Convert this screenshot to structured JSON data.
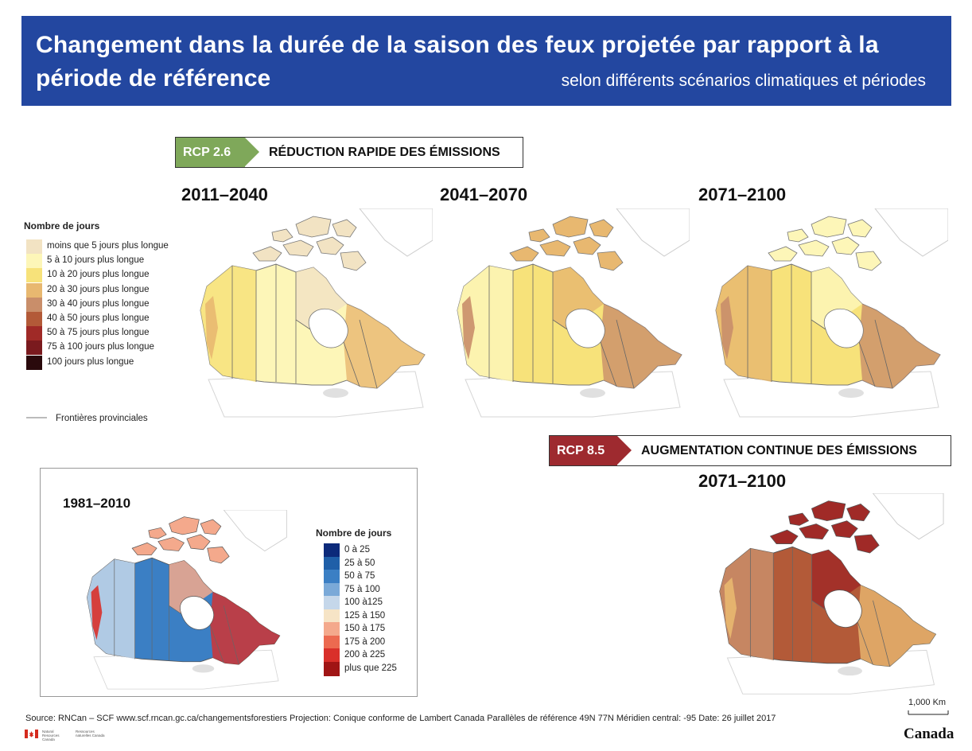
{
  "title": {
    "line1": "Changement dans la durée de la saison des feux projetée par rapport  à la",
    "line2": "période de référence",
    "subtitle": "selon différents scénarios climatiques et périodes"
  },
  "scenarios": {
    "rcp26": {
      "tag": "RCP 2.6",
      "label": "RÉDUCTION RAPIDE DES ÉMISSIONS",
      "color": "#7fa85a"
    },
    "rcp85": {
      "tag": "RCP 8.5",
      "label": "AUGMENTATION CONTINUE DES ÉMISSIONS",
      "color": "#9e2a2f"
    }
  },
  "periods": {
    "p1": "2011–2040",
    "p2": "2041–2070",
    "p3": "2071–2100",
    "p4": "2071–2100",
    "baseline": "1981–2010"
  },
  "legend_change": {
    "title": "Nombre de jours",
    "items": [
      {
        "label": "moins que 5 jours plus longue",
        "color": "#f2e3c3"
      },
      {
        "label": "5 à 10 jours plus longue",
        "color": "#fdf6b8"
      },
      {
        "label": "10 à 20 jours plus longue",
        "color": "#f7e27a"
      },
      {
        "label": "20 à 30 jours plus longue",
        "color": "#e8b870"
      },
      {
        "label": "30 à 40 jours plus longue",
        "color": "#c98e6a"
      },
      {
        "label": "40 à 50 jours plus longue",
        "color": "#b35a38"
      },
      {
        "label": "50 à 75 jours plus longue",
        "color": "#a02a27"
      },
      {
        "label": "75 à 100 jours plus longue",
        "color": "#7a1a1e"
      },
      {
        "label": "100 jours plus longue",
        "color": "#2a0a0c"
      }
    ],
    "border_label": "Frontières provinciales"
  },
  "legend_baseline": {
    "title": "Nombre de jours",
    "items": [
      {
        "label": "0 à 25",
        "color": "#0c2a7a"
      },
      {
        "label": "25 à 50",
        "color": "#1f5fa8"
      },
      {
        "label": "50 à 75",
        "color": "#3b7fc4"
      },
      {
        "label": "75 à 100",
        "color": "#7aa9d8"
      },
      {
        "label": "100 à125",
        "color": "#c5d7ea"
      },
      {
        "label": "125 à 150",
        "color": "#f6e4c6"
      },
      {
        "label": "150 à 175",
        "color": "#f4a98c"
      },
      {
        "label": "175 à 200",
        "color": "#ec6a50"
      },
      {
        "label": "200 à 225",
        "color": "#d9302a"
      },
      {
        "label": "plus que 225",
        "color": "#a01515"
      }
    ]
  },
  "source": "Source: RNCan – SCF  www.scf.rncan.gc.ca/changementsforestiers  Projection: Conique conforme de Lambert Canada  Parallèles de référence 49N 77N  Méridien central: -95  Date: 26 juillet 2017",
  "scale_label": "1,000 Km",
  "wordmark": "Canada",
  "govt_en": "Natural Resources Canada",
  "govt_fr": "Ressources naturelles Canada",
  "map_fills": {
    "p1": [
      "#fdf6b8",
      "#f7e27a",
      "#f2e3c3",
      "#e8b870"
    ],
    "p2": [
      "#f7e27a",
      "#fdf6b8",
      "#e8b870",
      "#c98e6a"
    ],
    "p3": [
      "#f7e27a",
      "#e8b870",
      "#fdf6b8",
      "#c98e6a"
    ],
    "p4": [
      "#b35a38",
      "#c98e6a",
      "#a02a27",
      "#e8b870"
    ],
    "baseline": [
      "#3b7fc4",
      "#c5d7ea",
      "#f4a98c",
      "#d9302a"
    ]
  }
}
